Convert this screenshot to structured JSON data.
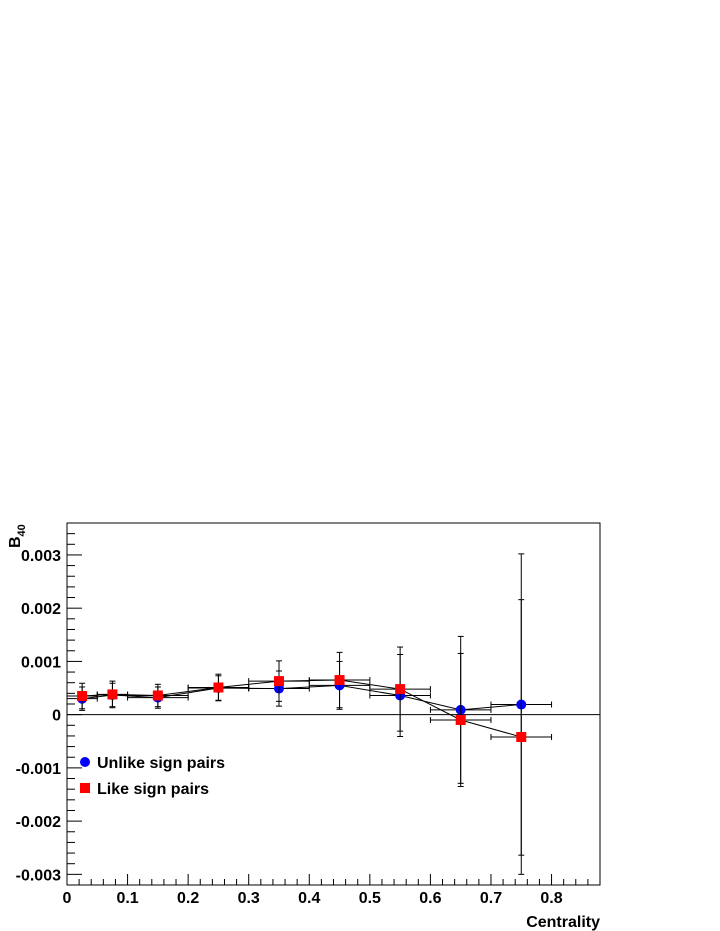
{
  "chart_data": {
    "type": "scatter",
    "title": "",
    "xlabel": "Centrality",
    "ylabel_main": "B",
    "ylabel_sub": "40",
    "xlim": [
      0,
      0.88
    ],
    "ylim": [
      -0.0032,
      0.0036
    ],
    "x_ticks": [
      {
        "v": 0,
        "label": "0"
      },
      {
        "v": 0.1,
        "label": "0.1"
      },
      {
        "v": 0.2,
        "label": "0.2"
      },
      {
        "v": 0.3,
        "label": "0.3"
      },
      {
        "v": 0.4,
        "label": "0.4"
      },
      {
        "v": 0.5,
        "label": "0.5"
      },
      {
        "v": 0.6,
        "label": "0.6"
      },
      {
        "v": 0.7,
        "label": "0.7"
      },
      {
        "v": 0.8,
        "label": "0.8"
      }
    ],
    "y_ticks": [
      {
        "v": 0.003,
        "label": "0.003"
      },
      {
        "v": 0.002,
        "label": "0.002"
      },
      {
        "v": 0.001,
        "label": "0.001"
      },
      {
        "v": 0,
        "label": "0"
      },
      {
        "v": -0.001,
        "label": "-0.001"
      },
      {
        "v": -0.002,
        "label": "-0.002"
      },
      {
        "v": -0.003,
        "label": "-0.003"
      }
    ],
    "zero_line": true,
    "grid": false,
    "legend_position": "lower-left",
    "series": [
      {
        "name": "Unlike sign pairs",
        "color": "#0000ff",
        "marker": "circle",
        "points": [
          {
            "x": 0.025,
            "y": 0.0003,
            "xerr": 0.025,
            "yerr": 0.00022
          },
          {
            "x": 0.075,
            "y": 0.00037,
            "xerr": 0.025,
            "yerr": 0.00022
          },
          {
            "x": 0.15,
            "y": 0.00032,
            "xerr": 0.05,
            "yerr": 0.0002
          },
          {
            "x": 0.25,
            "y": 0.0005,
            "xerr": 0.05,
            "yerr": 0.00023
          },
          {
            "x": 0.35,
            "y": 0.00049,
            "xerr": 0.05,
            "yerr": 0.00033
          },
          {
            "x": 0.45,
            "y": 0.00055,
            "xerr": 0.05,
            "yerr": 0.00045
          },
          {
            "x": 0.55,
            "y": 0.00036,
            "xerr": 0.05,
            "yerr": 0.00077
          },
          {
            "x": 0.65,
            "y": 9e-05,
            "xerr": 0.05,
            "yerr": 0.00138
          },
          {
            "x": 0.75,
            "y": 0.00019,
            "xerr": 0.05,
            "yerr": 0.00283
          }
        ]
      },
      {
        "name": "Like sign pairs",
        "color": "#ff0000",
        "marker": "square",
        "points": [
          {
            "x": 0.025,
            "y": 0.00035,
            "xerr": 0.025,
            "yerr": 0.00024
          },
          {
            "x": 0.075,
            "y": 0.00038,
            "xerr": 0.025,
            "yerr": 0.00025
          },
          {
            "x": 0.15,
            "y": 0.00036,
            "xerr": 0.05,
            "yerr": 0.00021
          },
          {
            "x": 0.25,
            "y": 0.00051,
            "xerr": 0.05,
            "yerr": 0.00025
          },
          {
            "x": 0.35,
            "y": 0.00063,
            "xerr": 0.05,
            "yerr": 0.00038
          },
          {
            "x": 0.45,
            "y": 0.00065,
            "xerr": 0.05,
            "yerr": 0.00052
          },
          {
            "x": 0.55,
            "y": 0.00048,
            "xerr": 0.05,
            "yerr": 0.00079
          },
          {
            "x": 0.65,
            "y": -0.0001,
            "xerr": 0.05,
            "yerr": 0.00125
          },
          {
            "x": 0.75,
            "y": -0.00042,
            "xerr": 0.05,
            "yerr": 0.00258
          }
        ]
      }
    ]
  }
}
